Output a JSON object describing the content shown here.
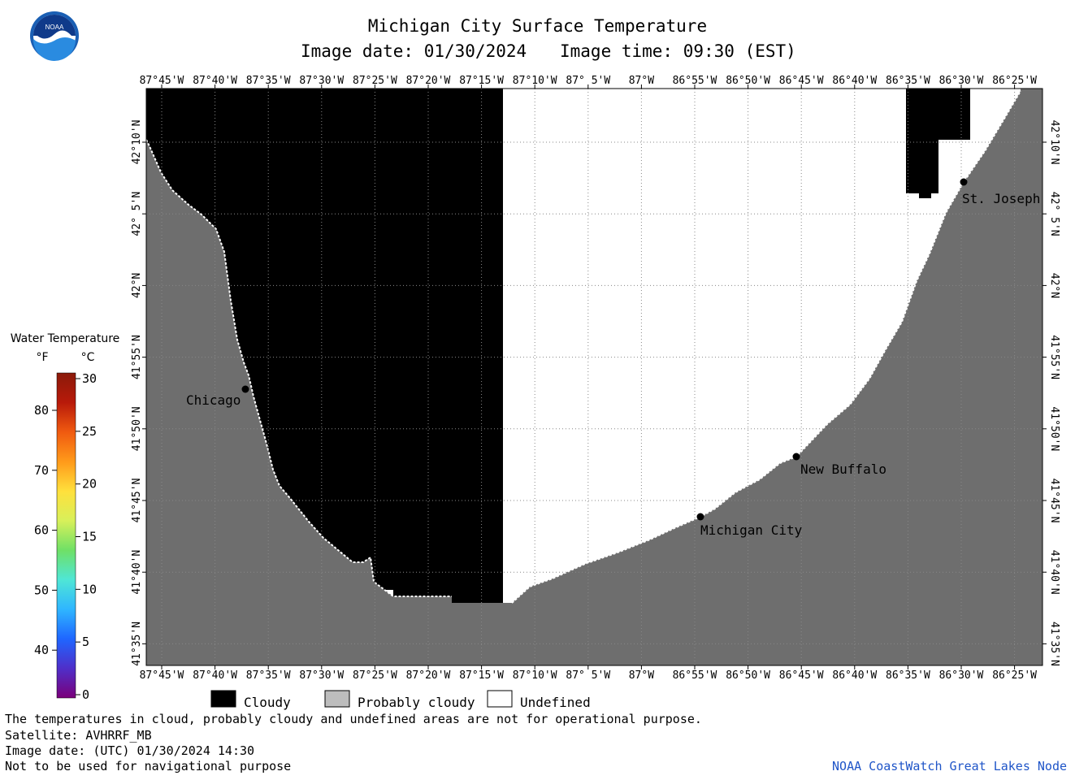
{
  "header": {
    "title": "Michigan City Surface Temperature",
    "image_date_label": "Image date: 01/30/2024",
    "image_time_label": "Image time: 09:30 (EST)"
  },
  "map": {
    "lon_ticks": [
      "87°45'W",
      "87°40'W",
      "87°35'W",
      "87°30'W",
      "87°25'W",
      "87°20'W",
      "87°15'W",
      "87°10'W",
      "87° 5'W",
      "87°W",
      "86°55'W",
      "86°50'W",
      "86°45'W",
      "86°40'W",
      "86°35'W",
      "86°30'W",
      "86°25'W"
    ],
    "lat_ticks": [
      "42°10'N",
      "42° 5'N",
      "42°N",
      "41°55'N",
      "41°50'N",
      "41°45'N",
      "41°40'N",
      "41°35'N"
    ],
    "cities": [
      {
        "name": "Chicago"
      },
      {
        "name": "St. Joseph"
      },
      {
        "name": "New Buffalo"
      },
      {
        "name": "Michigan City"
      }
    ],
    "colors": {
      "cloudy": "#000000",
      "land": "#6e6e6e",
      "undefined": "#ffffff",
      "coast": "#ffffff"
    }
  },
  "legend": {
    "title": "Water Temperature",
    "unit_f": "°F",
    "unit_c": "°C",
    "f_ticks": [
      "80",
      "70",
      "60",
      "50",
      "40"
    ],
    "c_ticks": [
      "30",
      "25",
      "20",
      "15",
      "10",
      "5",
      "0"
    ],
    "colorbar_colors": [
      "#7a007a",
      "#4f2fc9",
      "#1f66ff",
      "#2fb6ff",
      "#4fe6d6",
      "#6fe066",
      "#d8f05a",
      "#ffe03c",
      "#ff9a1a",
      "#f05a10",
      "#b81a0a",
      "#8a1a0a"
    ],
    "categories": [
      {
        "label": "Cloudy",
        "color": "#000000"
      },
      {
        "label": "Probably cloudy",
        "color": "#bdbdbd"
      },
      {
        "label": "Undefined",
        "color": "#ffffff"
      }
    ]
  },
  "footer": {
    "note": "The temperatures in cloud, probably cloudy and undefined areas are not for operational purpose.",
    "satellite": "Satellite: AVHRRF_MB",
    "image_date_utc": "Image date: (UTC) 01/30/2024  14:30",
    "navigation": "Not to be used for navigational purpose",
    "credit": "NOAA CoastWatch Great Lakes Node"
  }
}
